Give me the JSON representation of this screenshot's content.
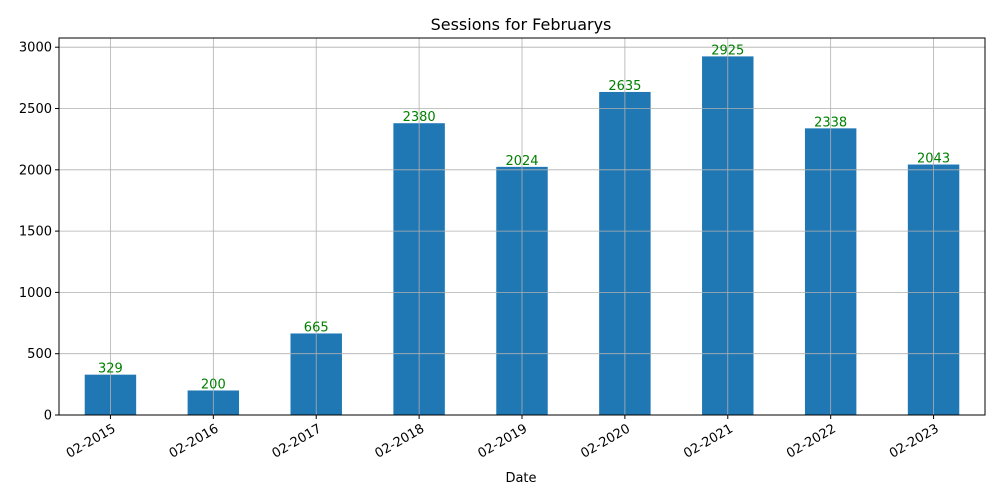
{
  "chart_data": {
    "type": "bar",
    "title": "Sessions for Februarys",
    "xlabel": "Date",
    "ylabel": "",
    "categories": [
      "02-2015",
      "02-2016",
      "02-2017",
      "02-2018",
      "02-2019",
      "02-2020",
      "02-2021",
      "02-2022",
      "02-2023"
    ],
    "values": [
      329,
      200,
      665,
      2380,
      2024,
      2635,
      2925,
      2338,
      2043
    ],
    "ylim": [
      0,
      3075
    ],
    "yticks": [
      0,
      500,
      1000,
      1500,
      2000,
      2500,
      3000
    ],
    "grid": true,
    "x_tick_rotation": 30,
    "colors": {
      "bar": "#1f77b4",
      "data_label": "#008000",
      "grid": "#b0b0b0"
    }
  }
}
